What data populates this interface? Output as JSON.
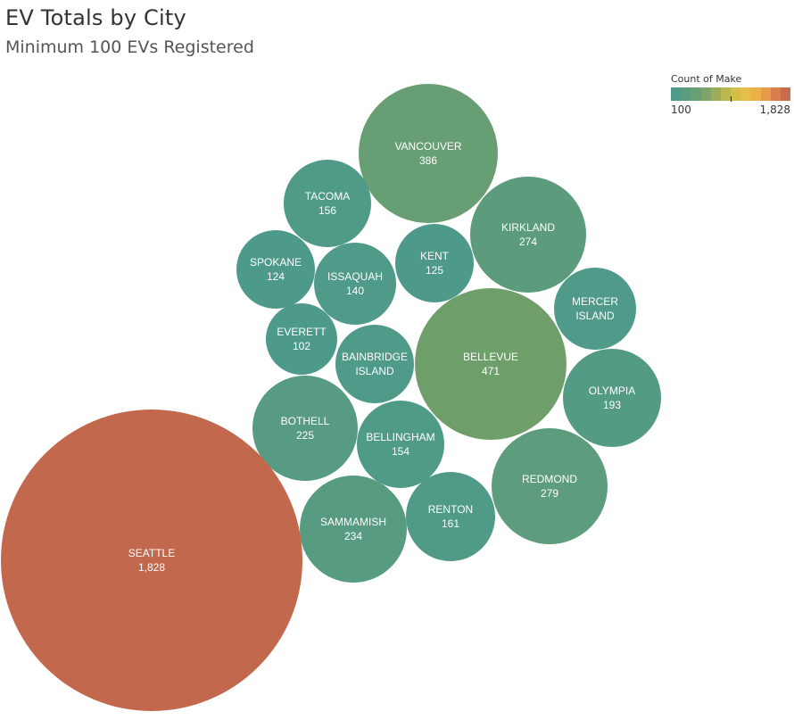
{
  "chart_data": {
    "type": "bubble",
    "title": "EV Totals by City",
    "subtitle": "Minimum 100 EVs Registered",
    "color_legend": {
      "title": "Count of Make",
      "min_label": "100",
      "max_label": "1,828",
      "min": 100,
      "max": 1828,
      "colors": [
        "#4f9a8a",
        "#5a9c80",
        "#6a9e74",
        "#7fa36a",
        "#9bac5a",
        "#b8b84e",
        "#d1bf48",
        "#e4c04a",
        "#ecb247",
        "#e79a4a",
        "#d97f4e",
        "#c96b4e"
      ]
    },
    "points": [
      {
        "city": [
          "VANCOUVER"
        ],
        "label": "386",
        "value": 386,
        "color": "#679e73"
      },
      {
        "city": [
          "TACOMA"
        ],
        "label": "156",
        "value": 156,
        "color": "#509a88"
      },
      {
        "city": [
          "KIRKLAND"
        ],
        "label": "274",
        "value": 274,
        "color": "#5c9c7d"
      },
      {
        "city": [
          "SPOKANE"
        ],
        "label": "124",
        "value": 124,
        "color": "#4e9a8a"
      },
      {
        "city": [
          "ISSAQUAH"
        ],
        "label": "140",
        "value": 140,
        "color": "#4f9a89"
      },
      {
        "city": [
          "KENT"
        ],
        "label": "125",
        "value": 125,
        "color": "#4e9a8a"
      },
      {
        "city": [
          "MERCER",
          "ISLAND"
        ],
        "label": "",
        "value": null,
        "color": "#4f9a89"
      },
      {
        "city": [
          "EVERETT"
        ],
        "label": "102",
        "value": 102,
        "color": "#4d9a8b"
      },
      {
        "city": [
          "BAINBRIDGE",
          "ISLAND"
        ],
        "label": "",
        "value": null,
        "color": "#4f9a89"
      },
      {
        "city": [
          "BELLEVUE"
        ],
        "label": "471",
        "value": 471,
        "color": "#6e9f6b"
      },
      {
        "city": [
          "OLYMPIA"
        ],
        "label": "193",
        "value": 193,
        "color": "#539b85"
      },
      {
        "city": [
          "BOTHELL"
        ],
        "label": "225",
        "value": 225,
        "color": "#569b82"
      },
      {
        "city": [
          "BELLINGHAM"
        ],
        "label": "154",
        "value": 154,
        "color": "#509a88"
      },
      {
        "city": [
          "REDMOND"
        ],
        "label": "279",
        "value": 279,
        "color": "#5d9c7c"
      },
      {
        "city": [
          "SAMMAMISH"
        ],
        "label": "234",
        "value": 234,
        "color": "#579b81"
      },
      {
        "city": [
          "RENTON"
        ],
        "label": "161",
        "value": 161,
        "color": "#509a88"
      },
      {
        "city": [
          "SEATTLE"
        ],
        "label": "1,828",
        "value": 1828,
        "color": "#c2694d"
      }
    ]
  }
}
